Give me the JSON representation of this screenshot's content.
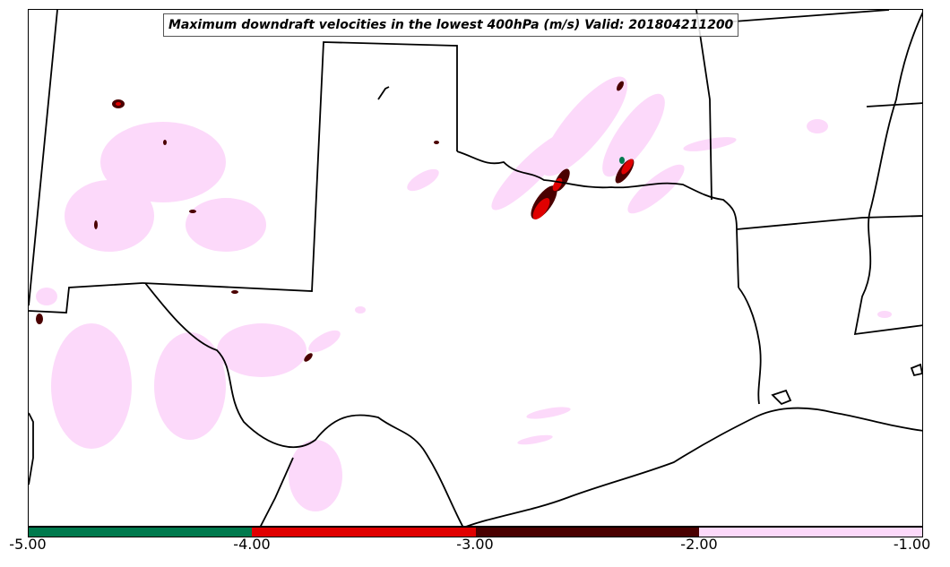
{
  "title": "Maximum downdraft velocities in the lowest 400hPa (m/s) Valid: 201804211200",
  "colorbar": {
    "ticks": [
      "-5.00",
      "-4.00",
      "-3.00",
      "-2.00",
      "-1.00"
    ],
    "colors": [
      "#007a4d",
      "#e00000",
      "#4a0000",
      "#fcd9fa"
    ]
  },
  "colors": {
    "border": "#000000",
    "light_pink": "#fcd9fa",
    "red": "#e00000",
    "dark_red": "#4a0000",
    "green": "#007a4d"
  }
}
